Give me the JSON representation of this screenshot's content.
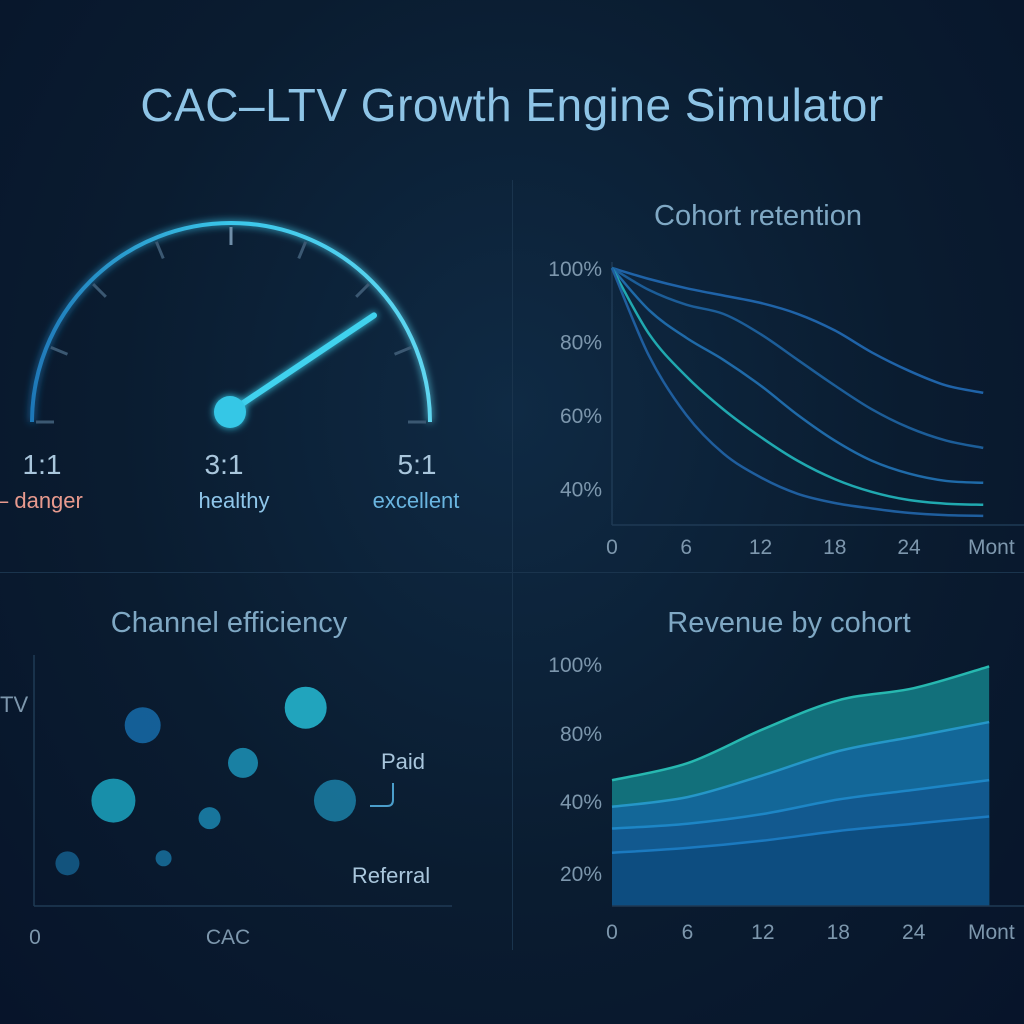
{
  "title": "CAC–LTV Growth Engine Simulator",
  "colors": {
    "background": "#0a1c30",
    "accent": "#35c7e6",
    "danger": "#e89a8e",
    "healthy": "#8fc6ea",
    "excellent": "#6ab5e0",
    "axis_text": "#7d97ad"
  },
  "gauge": {
    "ratio_labels": [
      "1:1",
      "3:1",
      "5:1"
    ],
    "zone_labels": [
      "– danger",
      "healthy",
      "excellent"
    ],
    "value": 4.2,
    "min": 1,
    "max": 5
  },
  "cohort_retention": {
    "title": "Cohort retention",
    "y_ticks": [
      "100%",
      "80%",
      "60%",
      "40%"
    ],
    "x_ticks": [
      "0",
      "6",
      "12",
      "18",
      "24",
      "Mont"
    ]
  },
  "channel_efficiency": {
    "title": "Channel efficiency",
    "ylabel": "TV",
    "xlabel": "CAC",
    "x_origin_label": "0",
    "annotations": [
      "Paid",
      "Referral"
    ]
  },
  "revenue_by_cohort": {
    "title": "Revenue by cohort",
    "y_ticks": [
      "100%",
      "80%",
      "40%",
      "20%"
    ],
    "x_ticks": [
      "0",
      "6",
      "12",
      "18",
      "24",
      "Mont"
    ]
  },
  "chart_data": [
    {
      "type": "gauge",
      "title": "",
      "min": 1,
      "max": 5,
      "value": 4.2,
      "tick_labels": [
        "1:1",
        "3:1",
        "5:1"
      ],
      "zones": [
        "– danger",
        "healthy",
        "excellent"
      ]
    },
    {
      "type": "line",
      "title": "Cohort retention",
      "xlabel": "Mont",
      "ylabel": "",
      "x": [
        0,
        3,
        6,
        9,
        12,
        15,
        18,
        21,
        24,
        27,
        30
      ],
      "xlim": [
        0,
        32
      ],
      "ylim": [
        30,
        100
      ],
      "series": [
        {
          "values": [
            100,
            97,
            94.5,
            92.5,
            90.5,
            87.5,
            83,
            77,
            72,
            68,
            66
          ]
        },
        {
          "values": [
            100,
            94,
            90,
            87.5,
            82,
            75,
            68,
            61.5,
            56.5,
            53,
            51
          ]
        },
        {
          "values": [
            100,
            88.5,
            81,
            75,
            68,
            60,
            53,
            47.5,
            44,
            42,
            41.5
          ]
        },
        {
          "values": [
            100,
            82,
            70.5,
            61.5,
            54,
            47.5,
            42.5,
            39,
            36.8,
            35.8,
            35.5
          ]
        },
        {
          "values": [
            100,
            76,
            60,
            49.5,
            43,
            38.5,
            36,
            34.5,
            33.3,
            32.7,
            32.5
          ]
        }
      ]
    },
    {
      "type": "scatter",
      "title": "Channel efficiency",
      "xlabel": "CAC",
      "ylabel": "TV",
      "xlim": [
        0,
        100
      ],
      "ylim": [
        0,
        100
      ],
      "points": [
        {
          "x": 8,
          "y": 17,
          "size": 12
        },
        {
          "x": 19,
          "y": 42,
          "size": 22
        },
        {
          "x": 26,
          "y": 72,
          "size": 18
        },
        {
          "x": 31,
          "y": 19,
          "size": 8
        },
        {
          "x": 42,
          "y": 35,
          "size": 11
        },
        {
          "x": 50,
          "y": 57,
          "size": 15
        },
        {
          "x": 65,
          "y": 79,
          "size": 21
        },
        {
          "x": 72,
          "y": 42,
          "size": 21
        }
      ],
      "annotations": [
        "Paid",
        "Referral"
      ]
    },
    {
      "type": "area",
      "title": "Revenue by cohort",
      "xlabel": "Mont",
      "ylabel": "",
      "x": [
        0,
        6,
        12,
        18,
        24,
        30
      ],
      "xlim": [
        0,
        31.5
      ],
      "ylim": [
        0,
        100
      ],
      "series": [
        {
          "values": [
            22,
            24,
            27,
            31,
            34,
            37
          ]
        },
        {
          "values": [
            32,
            34,
            38,
            44,
            48,
            52
          ]
        },
        {
          "values": [
            41,
            45,
            54,
            64,
            70,
            76
          ]
        },
        {
          "values": [
            52,
            59,
            73,
            85,
            90,
            99
          ]
        }
      ]
    }
  ]
}
